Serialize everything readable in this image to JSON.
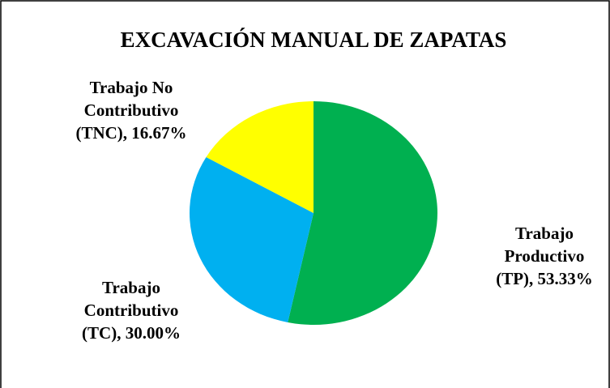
{
  "chart_data": {
    "type": "pie",
    "title": "EXCAVACIÓN MANUAL DE ZAPATAS",
    "values": [
      53.33,
      30.0,
      16.67
    ],
    "value_labels": [
      [
        "Trabajo",
        "Productivo",
        "(TP), 53.33%"
      ],
      [
        "Trabajo",
        "Contributivo",
        "(TC), 30.00%"
      ],
      [
        "Trabajo No",
        "Contributivo",
        "(TNC), 16.67%"
      ]
    ],
    "colors": [
      "#00b050",
      "#00b0f0",
      "#ffff00"
    ]
  }
}
